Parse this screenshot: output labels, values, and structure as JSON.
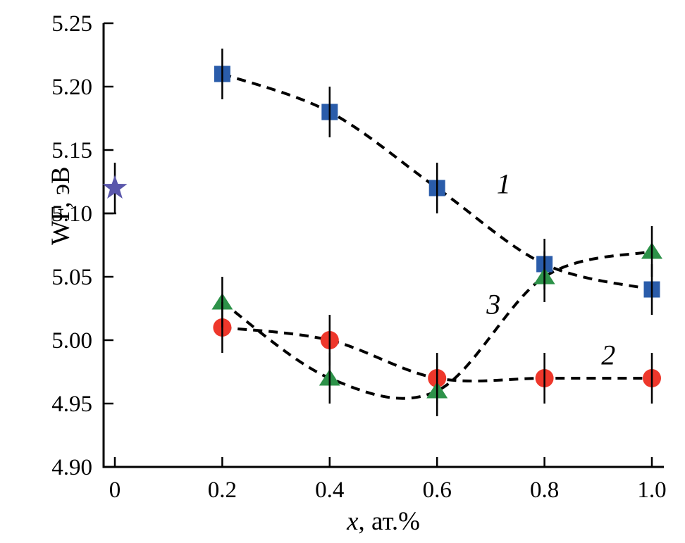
{
  "figure": {
    "kind": "scientific-plot",
    "background": "#ffffff"
  },
  "chart_data": {
    "type": "line",
    "line_style": "dashed",
    "line_color": "#000000",
    "grid": false,
    "legend": "none (curves labelled 1, 2, 3 inline)",
    "title": "",
    "xlabel_var": "x",
    "xlabel_rest": ", ат.%",
    "ylabel": "WF, эВ",
    "xlim": [
      0,
      1.0
    ],
    "ylim": [
      4.9,
      5.25
    ],
    "x_ticks": [
      0,
      0.2,
      0.4,
      0.6,
      0.8,
      1.0
    ],
    "x_tick_labels": [
      "0",
      "0.2",
      "0.4",
      "0.6",
      "0.8",
      "1.0"
    ],
    "y_ticks": [
      4.9,
      4.95,
      5.0,
      5.05,
      5.1,
      5.15,
      5.2,
      5.25
    ],
    "y_tick_labels": [
      "4.90",
      "4.95",
      "5.00",
      "5.05",
      "5.10",
      "5.15",
      "5.20",
      "5.25"
    ],
    "x": [
      0.2,
      0.4,
      0.6,
      0.8,
      1.0
    ],
    "series": [
      {
        "name": "1",
        "marker": "square",
        "color": "#2a5caa",
        "values": [
          5.21,
          5.18,
          5.12,
          5.06,
          5.04
        ],
        "y_error": 0.02,
        "label_pos": {
          "x": 0.724,
          "y": 5.123
        }
      },
      {
        "name": "2",
        "marker": "circle",
        "color": "#ee372b",
        "values": [
          5.01,
          5.0,
          4.97,
          4.97,
          4.97
        ],
        "y_error": 0.02,
        "label_pos": {
          "x": 0.919,
          "y": 4.988
        }
      },
      {
        "name": "3",
        "marker": "triangle",
        "color": "#2d9249",
        "values": [
          5.03,
          4.97,
          4.96,
          5.05,
          5.07
        ],
        "y_error": 0.02,
        "label_pos": {
          "x": 0.705,
          "y": 5.028
        }
      }
    ],
    "reference_point": {
      "name": "star",
      "marker": "star",
      "color": "#5a57ab",
      "x": 0,
      "y": 5.12,
      "y_error": 0.02
    }
  }
}
